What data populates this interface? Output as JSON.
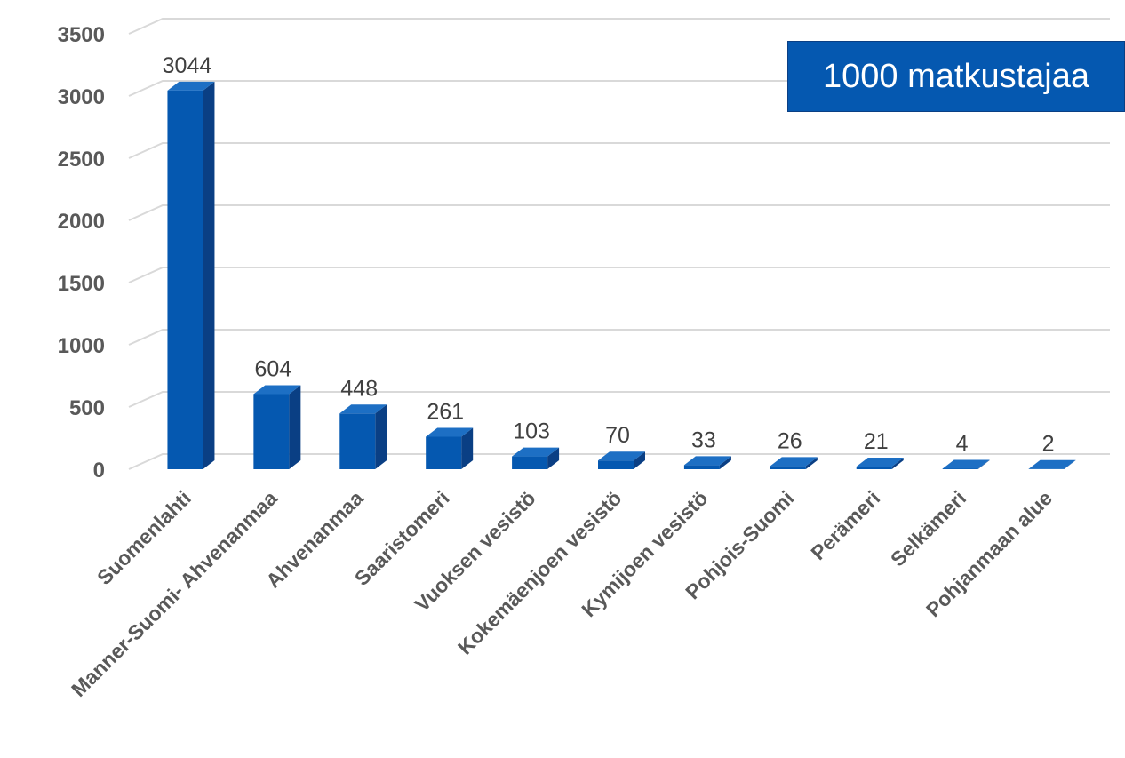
{
  "chart_data": {
    "type": "bar",
    "title": "",
    "xlabel": "",
    "ylabel": "",
    "categories": [
      "Suomenlahti",
      "Manner-Suomi- Ahvenanmaa",
      "Ahvenanmaa",
      "Saaristomeri",
      "Vuoksen vesistö",
      "Kokemäenjoen vesistö",
      "Kymijoen vesistö",
      "Pohjois-Suomi",
      "Perämeri",
      "Selkämeri",
      "Pohjanmaan alue"
    ],
    "values": [
      3044,
      604,
      448,
      261,
      103,
      70,
      33,
      26,
      21,
      4,
      2
    ],
    "data_labels": [
      "3044",
      "604",
      "448",
      "261",
      "103",
      "70",
      "33",
      "26",
      "21",
      "4",
      "2"
    ],
    "ylim": [
      0,
      3500
    ],
    "yticks": [
      "0",
      "500",
      "1000",
      "1500",
      "2000",
      "2500",
      "3000",
      "3500"
    ],
    "grid": true,
    "style": "3d-column",
    "colors": {
      "bar_front": "#0558b0",
      "bar_top": "#1d6fc4",
      "bar_side": "#0a3f84",
      "grid": "#d9d9d9",
      "axis_text": "#595959",
      "label_text": "#404040"
    },
    "annotation": "1000 matkustajaa"
  }
}
